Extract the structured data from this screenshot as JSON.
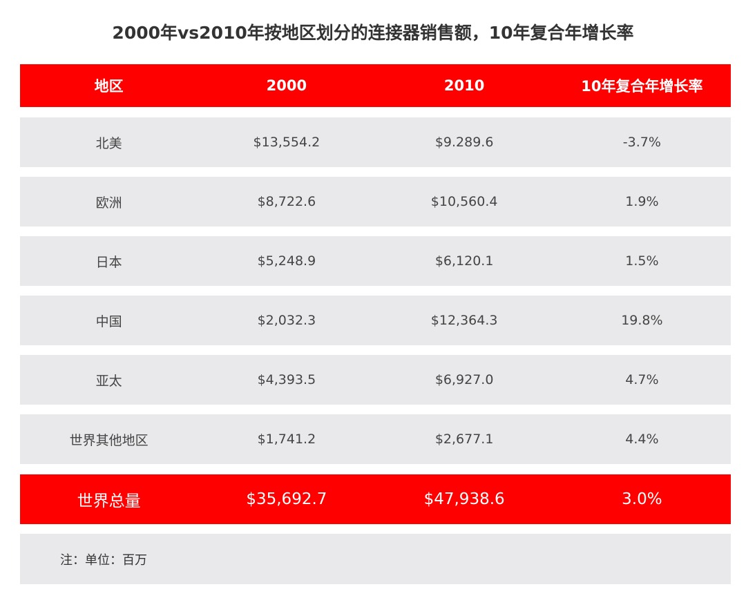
{
  "title": "2000年vs2010年按地区划分的连接器销售额，10年复合年增长率",
  "chart_data": {
    "type": "table",
    "title": "2000年vs2010年按地区划分的连接器销售额，10年复合年增长率",
    "columns": [
      "地区",
      "2000",
      "2010",
      "10年复合年增长率"
    ],
    "rows": [
      [
        "北美",
        "$13,554.2",
        "$9.289.6",
        "-3.7%"
      ],
      [
        "欧洲",
        "$8,722.6",
        "$10,560.4",
        "1.9%"
      ],
      [
        "日本",
        "$5,248.9",
        "$6,120.1",
        "1.5%"
      ],
      [
        "中国",
        "$2,032.3",
        "$12,364.3",
        "19.8%"
      ],
      [
        "亚太",
        "$4,393.5",
        "$6,927.0",
        "4.7%"
      ],
      [
        "世界其他地区",
        "$1,741.2",
        "$2,677.1",
        "4.4%"
      ]
    ],
    "total": [
      "世界总量",
      "$35,692.7",
      "$47,938.6",
      "3.0%"
    ],
    "note": "注：单位：百万",
    "colors": {
      "header": "#fe0000",
      "row": "#e9e9eb"
    }
  }
}
